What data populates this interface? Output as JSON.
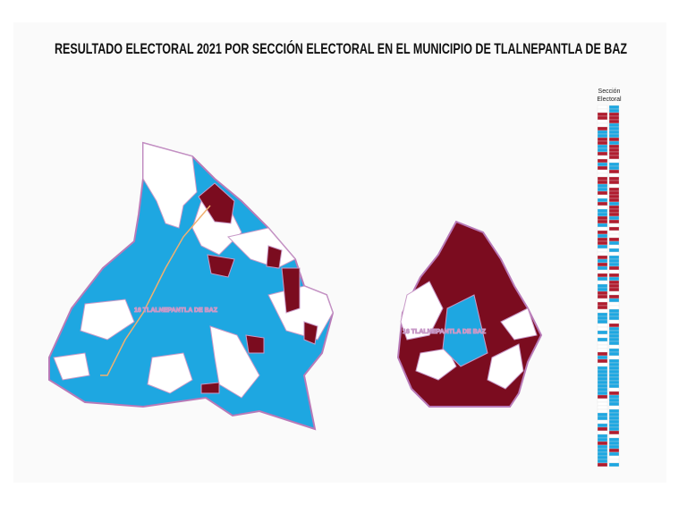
{
  "title": "RESULTADO ELECTORAL 2021 POR SECCIÓN ELECTORAL EN EL MUNICIPIO DE TLALNEPANTLA DE BAZ",
  "maps": [
    {
      "district": "16",
      "name": "TLALNEPANTLA DE BAZ"
    },
    {
      "district": "16",
      "name": "TLALNEPANTLA DE BAZ"
    }
  ],
  "legend": {
    "title_lines": [
      "Sección",
      "Electoral"
    ]
  }
}
